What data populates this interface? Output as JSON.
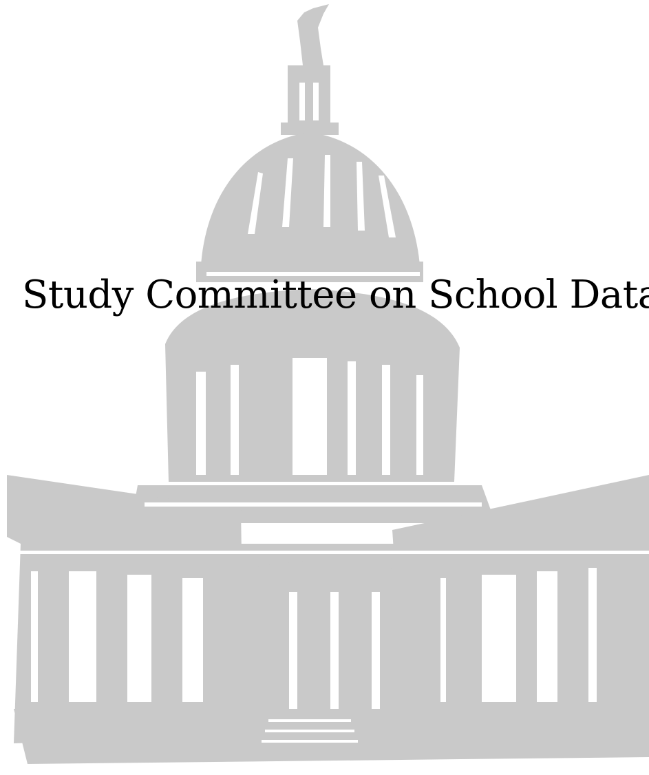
{
  "cover": {
    "title": "Study Committee on School Data"
  }
}
